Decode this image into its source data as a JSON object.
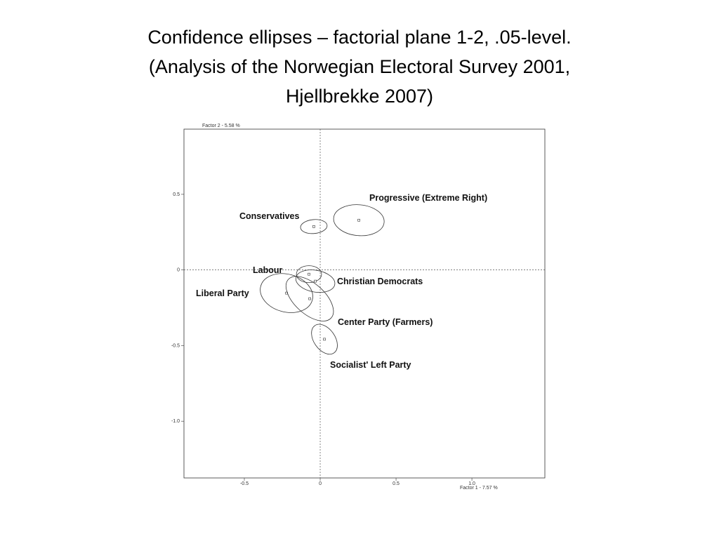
{
  "chart_data": {
    "type": "scatter",
    "title": [
      "Confidence ellipses – factorial plane 1-2, .05-level.",
      "(Analysis of the Norwegian Electoral Survey 2001,",
      "Hjellbrekke 2007)"
    ],
    "y_label": "Factor 2  -  5.58 %",
    "x_label": "Factor 1  -  7.57 %",
    "xlim": [
      -0.898,
      1.481
    ],
    "ylim": [
      -1.375,
      0.931
    ],
    "xticks": [
      -0.5,
      0,
      0.5,
      {
        "value": 1,
        "label": "1.0"
      }
    ],
    "yticks": [
      0.5,
      0,
      -0.5,
      {
        "value": -1,
        "label": "-1.0"
      }
    ],
    "color": "#333333",
    "points": [
      {
        "name": "Progressive (Extreme Right)",
        "x": 0.255,
        "y": 0.329,
        "rx": 0.167,
        "ry": 0.102,
        "angle": -5
      },
      {
        "name": "Conservatives",
        "x": -0.042,
        "y": 0.287,
        "rx": 0.088,
        "ry": 0.046,
        "angle": 5
      },
      {
        "name": "Labour",
        "x": -0.074,
        "y": -0.028,
        "rx": 0.083,
        "ry": 0.056,
        "angle": 0
      },
      {
        "name": "Christian Democrats",
        "x": -0.032,
        "y": -0.074,
        "rx": 0.13,
        "ry": 0.072,
        "angle": -10
      },
      {
        "name": "Liberal Party",
        "x": -0.222,
        "y": -0.153,
        "rx": 0.176,
        "ry": 0.125,
        "angle": -15
      },
      {
        "name": "Center Party (Farmers)",
        "x": -0.069,
        "y": -0.19,
        "rx": 0.19,
        "ry": 0.1,
        "angle": -42
      },
      {
        "name": "Socialist' Left Party",
        "x": 0.028,
        "y": -0.458,
        "rx": 0.11,
        "ry": 0.07,
        "angle": -55
      }
    ]
  }
}
